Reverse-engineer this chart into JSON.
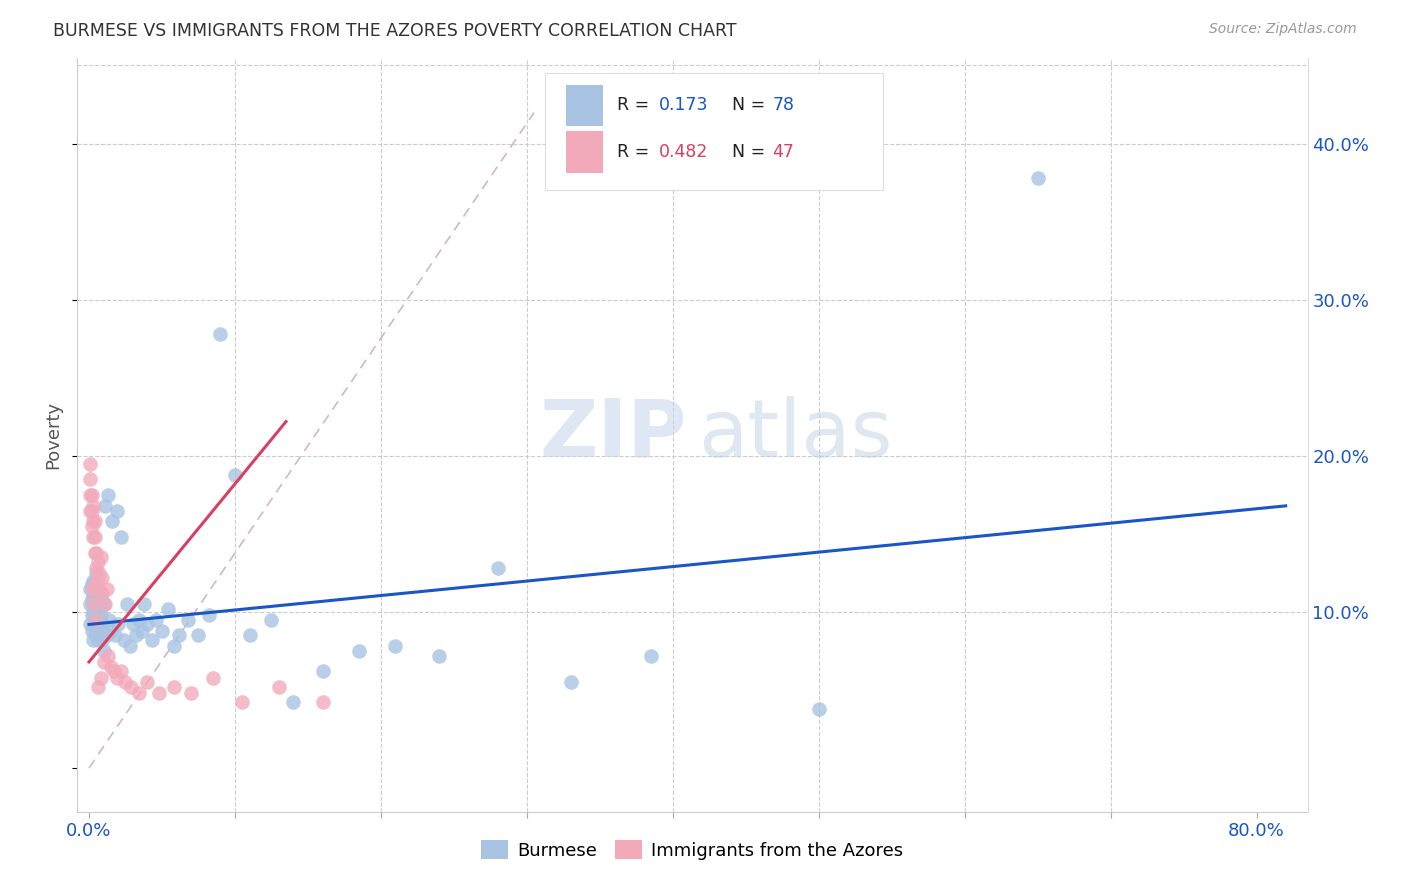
{
  "title": "BURMESE VS IMMIGRANTS FROM THE AZORES POVERTY CORRELATION CHART",
  "source": "Source: ZipAtlas.com",
  "ylabel": "Poverty",
  "burmese_color": "#a8c4e2",
  "azores_color": "#f2aabb",
  "trendline_blue": "#1a56c4",
  "trendline_pink": "#d94060",
  "trendline_dashed_color": "#d0a8b8",
  "watermark_zip": "#c8d8ee",
  "watermark_atlas": "#c0cce0",
  "legend_text_color": "#1a56c4",
  "legend_label_color": "#222222",
  "right_axis_color": "#1a56c4",
  "xlim": [
    -0.008,
    0.835
  ],
  "ylim": [
    -0.028,
    0.455
  ],
  "blue_line_x": [
    0.0,
    0.82
  ],
  "blue_line_y": [
    0.092,
    0.168
  ],
  "pink_line_x": [
    0.0,
    0.135
  ],
  "pink_line_y": [
    0.068,
    0.222
  ],
  "dash_line_x": [
    0.0,
    0.305
  ],
  "dash_line_y": [
    0.0,
    0.42
  ],
  "burmese_x": [
    0.001,
    0.001,
    0.001,
    0.002,
    0.002,
    0.002,
    0.002,
    0.003,
    0.003,
    0.003,
    0.003,
    0.003,
    0.004,
    0.004,
    0.004,
    0.004,
    0.004,
    0.005,
    0.005,
    0.005,
    0.005,
    0.005,
    0.006,
    0.006,
    0.006,
    0.006,
    0.007,
    0.007,
    0.007,
    0.008,
    0.008,
    0.008,
    0.009,
    0.009,
    0.01,
    0.01,
    0.011,
    0.012,
    0.013,
    0.014,
    0.015,
    0.016,
    0.018,
    0.019,
    0.02,
    0.022,
    0.024,
    0.026,
    0.028,
    0.03,
    0.032,
    0.034,
    0.036,
    0.038,
    0.04,
    0.043,
    0.046,
    0.05,
    0.054,
    0.058,
    0.062,
    0.068,
    0.075,
    0.082,
    0.09,
    0.1,
    0.11,
    0.125,
    0.14,
    0.16,
    0.185,
    0.21,
    0.24,
    0.28,
    0.33,
    0.385,
    0.5,
    0.65
  ],
  "burmese_y": [
    0.092,
    0.105,
    0.115,
    0.088,
    0.098,
    0.108,
    0.118,
    0.082,
    0.092,
    0.1,
    0.11,
    0.12,
    0.085,
    0.093,
    0.102,
    0.112,
    0.095,
    0.088,
    0.095,
    0.105,
    0.115,
    0.125,
    0.082,
    0.09,
    0.1,
    0.11,
    0.085,
    0.093,
    0.103,
    0.088,
    0.098,
    0.108,
    0.082,
    0.092,
    0.075,
    0.105,
    0.168,
    0.085,
    0.175,
    0.095,
    0.088,
    0.158,
    0.085,
    0.165,
    0.092,
    0.148,
    0.082,
    0.105,
    0.078,
    0.092,
    0.085,
    0.095,
    0.088,
    0.105,
    0.092,
    0.082,
    0.095,
    0.088,
    0.102,
    0.078,
    0.085,
    0.095,
    0.085,
    0.098,
    0.278,
    0.188,
    0.085,
    0.095,
    0.042,
    0.062,
    0.075,
    0.078,
    0.072,
    0.128,
    0.055,
    0.072,
    0.038,
    0.378
  ],
  "azores_x": [
    0.001,
    0.001,
    0.001,
    0.001,
    0.002,
    0.002,
    0.002,
    0.002,
    0.003,
    0.003,
    0.003,
    0.003,
    0.004,
    0.004,
    0.004,
    0.004,
    0.005,
    0.005,
    0.005,
    0.006,
    0.006,
    0.006,
    0.007,
    0.007,
    0.008,
    0.008,
    0.009,
    0.009,
    0.01,
    0.011,
    0.012,
    0.013,
    0.015,
    0.017,
    0.019,
    0.022,
    0.025,
    0.029,
    0.034,
    0.04,
    0.048,
    0.058,
    0.07,
    0.085,
    0.105,
    0.13,
    0.16
  ],
  "azores_y": [
    0.165,
    0.175,
    0.185,
    0.195,
    0.155,
    0.165,
    0.175,
    0.115,
    0.148,
    0.158,
    0.168,
    0.105,
    0.138,
    0.148,
    0.158,
    0.118,
    0.128,
    0.138,
    0.095,
    0.122,
    0.132,
    0.052,
    0.115,
    0.125,
    0.135,
    0.058,
    0.112,
    0.122,
    0.068,
    0.105,
    0.115,
    0.072,
    0.065,
    0.062,
    0.058,
    0.062,
    0.055,
    0.052,
    0.048,
    0.055,
    0.048,
    0.052,
    0.048,
    0.058,
    0.042,
    0.052,
    0.042
  ]
}
